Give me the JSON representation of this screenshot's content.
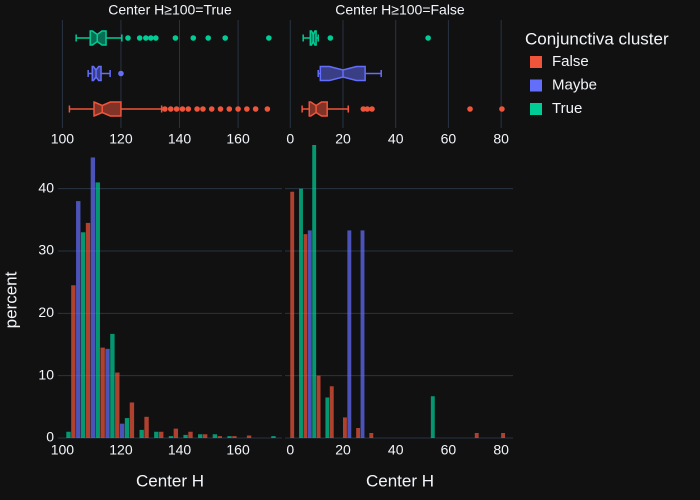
{
  "chart_data": [
    {
      "type": "histogram",
      "title": "Center H≥100=True",
      "x_label": "Center H",
      "y_label": "percent",
      "legend_title": "Conjunctiva cluster",
      "bins": [
        98,
        103,
        108,
        113,
        118,
        123,
        128,
        133,
        138,
        143,
        148,
        153,
        158,
        163,
        168,
        173,
        178
      ],
      "xlim": [
        98.5,
        175
      ],
      "xticks": [
        100,
        120,
        140,
        160
      ],
      "ylim": [
        0,
        47
      ],
      "yticks": [
        0,
        10,
        20,
        30,
        40
      ],
      "grid": true,
      "series": [
        {
          "name": "False",
          "color": "#EF553B",
          "values": [
            0,
            24.5,
            34.5,
            14.5,
            10.5,
            5.7,
            3.4,
            1.0,
            1.5,
            1.0,
            0.6,
            0.3,
            0.3,
            0.4,
            0,
            0
          ],
          "box": {
            "lowerfence": 102.4,
            "q1": 110.8,
            "median": 113.6,
            "q3": 120,
            "upperfence": 133.9,
            "outliers": [
              135,
              137,
              139,
              141,
              143,
              146,
              148,
              151,
              154,
              157,
              160,
              163,
              166,
              170
            ]
          }
        },
        {
          "name": "Maybe",
          "color": "#636EFA",
          "values": [
            0,
            38,
            45,
            14.3,
            2.3,
            0,
            0,
            0,
            0,
            0,
            0,
            0,
            0,
            0,
            0,
            0
          ],
          "box": {
            "lowerfence": 108.8,
            "q1": 110.2,
            "median": 111.5,
            "q3": 113.2,
            "upperfence": 116.3,
            "outliers": [
              120
            ]
          }
        },
        {
          "name": "True",
          "color": "#00CC96",
          "values": [
            1,
            33,
            41,
            16.7,
            3.2,
            1.3,
            1.0,
            0.3,
            0.5,
            0.6,
            0.6,
            0.3,
            0,
            0,
            0.3,
            0
          ],
          "box": {
            "lowerfence": 104.7,
            "q1": 109.5,
            "median": 111.9,
            "q3": 114.9,
            "upperfence": 120.3,
            "outliers": [
              122.4,
              126.4,
              128.5,
              130.2,
              131.9,
              138.6,
              144.7,
              149.8,
              155.6,
              170.5
            ]
          }
        }
      ]
    },
    {
      "type": "histogram",
      "title": "Center H≥100=False",
      "x_label": "Center H",
      "bins": [
        0,
        5,
        10,
        15,
        20,
        25,
        30,
        35,
        40,
        45,
        50,
        55,
        60,
        65,
        70,
        75,
        80,
        85
      ],
      "xlim": [
        -2,
        84.5
      ],
      "xticks": [
        0,
        20,
        40,
        60,
        80
      ],
      "ylim": [
        0,
        47
      ],
      "yticks": [
        0,
        10,
        20,
        30,
        40
      ],
      "grid": true,
      "series": [
        {
          "name": "False",
          "color": "#EF553B",
          "values": [
            39.5,
            32.7,
            10,
            8.3,
            3.3,
            1.6,
            0.8,
            0,
            0,
            0,
            0,
            0,
            0,
            0,
            0.8,
            0,
            0.8
          ],
          "box": {
            "lowerfence": 4.5,
            "q1": 7.2,
            "median": 9.8,
            "q3": 14,
            "upperfence": 22,
            "outliers": [
              27.7,
              29.2,
              31,
              68.2,
              80.3
            ]
          }
        },
        {
          "name": "Maybe",
          "color": "#636EFA",
          "values": [
            0,
            33.3,
            0,
            0,
            33.3,
            33.3,
            0,
            0,
            0,
            0,
            0,
            0,
            0,
            0,
            0,
            0,
            0
          ],
          "box": {
            "lowerfence": 10.6,
            "q1": 11.4,
            "median": 20,
            "q3": 28.4,
            "upperfence": 34.5,
            "outliers": []
          }
        },
        {
          "name": "True",
          "color": "#00CC96",
          "values": [
            40,
            47,
            6.5,
            0,
            0,
            0,
            0,
            0,
            0,
            0,
            6.7,
            0,
            0,
            0,
            0,
            0,
            0
          ],
          "box": {
            "lowerfence": 4.9,
            "q1": 7.6,
            "median": 8.7,
            "q3": 9.8,
            "upperfence": 10.6,
            "outliers": [
              15.2,
              52.3
            ]
          }
        }
      ]
    }
  ]
}
